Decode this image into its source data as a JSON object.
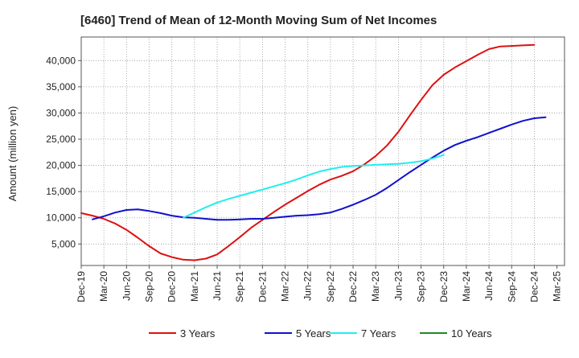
{
  "chart_data": {
    "type": "line",
    "title": "[6460]  Trend of Mean of 12-Month Moving Sum of Net Incomes",
    "xlabel": "",
    "ylabel": "Amount (million yen)",
    "ylim": [
      900,
      44500
    ],
    "y_ticks": [
      5000,
      10000,
      15000,
      20000,
      25000,
      30000,
      35000,
      40000
    ],
    "y_tick_labels": [
      "5,000",
      "10,000",
      "15,000",
      "20,000",
      "25,000",
      "30,000",
      "35,000",
      "40,000"
    ],
    "x_tick_labels": [
      "Dec-19",
      "Mar-20",
      "Jun-20",
      "Sep-20",
      "Dec-20",
      "Mar-21",
      "Jun-21",
      "Sep-21",
      "Dec-21",
      "Mar-22",
      "Jun-22",
      "Sep-22",
      "Dec-22",
      "Mar-23",
      "Jun-23",
      "Sep-23",
      "Dec-23",
      "Mar-24",
      "Jun-24",
      "Sep-24",
      "Dec-24",
      "Mar-25"
    ],
    "grid": true,
    "legend_position": "bottom",
    "series": [
      {
        "name": "3 Years",
        "color": "#dd1111",
        "start_index": 0,
        "values": [
          10900,
          10400,
          9800,
          8900,
          7700,
          6200,
          4600,
          3200,
          2500,
          2000,
          1900,
          2200,
          3000,
          4600,
          6300,
          8100,
          9600,
          11100,
          12500,
          13800,
          15100,
          16300,
          17300,
          18000,
          18900,
          20200,
          21800,
          23800,
          26400,
          29500,
          32500,
          35300,
          37300,
          38700,
          39900,
          41100,
          42200,
          42700,
          42800,
          42900,
          43000
        ]
      },
      {
        "name": "5 Years",
        "color": "#1111cc",
        "start_index": 1,
        "values": [
          9700,
          10300,
          11000,
          11500,
          11600,
          11300,
          10900,
          10400,
          10100,
          10000,
          9800,
          9600,
          9600,
          9700,
          9800,
          9800,
          10000,
          10200,
          10400,
          10500,
          10700,
          11000,
          11700,
          12500,
          13400,
          14400,
          15700,
          17200,
          18700,
          20100,
          21500,
          22800,
          23900,
          24700,
          25400,
          26200,
          27000,
          27800,
          28500,
          29000,
          29200
        ]
      },
      {
        "name": "7 Years",
        "color": "#22eeee",
        "start_index": 9,
        "values": [
          10000,
          11000,
          12000,
          12900,
          13600,
          14200,
          14800,
          15400,
          16000,
          16600,
          17300,
          18100,
          18800,
          19300,
          19700,
          19900,
          20000,
          20100,
          20200,
          20300,
          20500,
          20800,
          21300,
          22000
        ]
      },
      {
        "name": "10 Years",
        "color": "#228822",
        "start_index": 0,
        "values": []
      }
    ]
  }
}
